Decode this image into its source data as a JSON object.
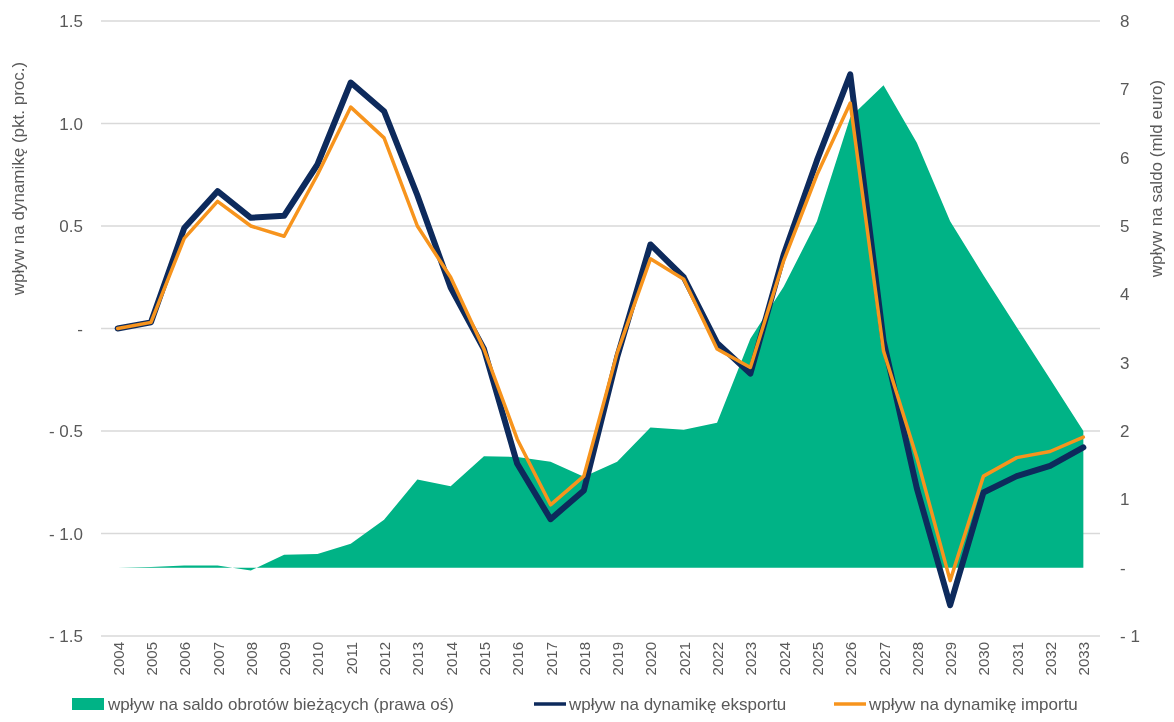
{
  "chart_data": {
    "type": "line",
    "ylabel": "wpływ  na dynamikę (pkt. proc.)",
    "y2label": "wpływ na saldo (mld euro)",
    "categories": [
      "2004",
      "2005",
      "2006",
      "2007",
      "2008",
      "2009",
      "2010",
      "2011",
      "2012",
      "2013",
      "2014",
      "2015",
      "2016",
      "2017",
      "2018",
      "2019",
      "2020",
      "2021",
      "2022",
      "2023",
      "2024",
      "2025",
      "2026",
      "2027",
      "2028",
      "2029",
      "2030",
      "2031",
      "2032",
      "2033"
    ],
    "series": [
      {
        "name": "wpływ na saldo obrotów bieżących (prawa oś)",
        "type": "area",
        "axis": "y2",
        "color": "#00b386",
        "values": [
          0,
          0.01,
          0.03,
          0.03,
          -0.04,
          0.19,
          0.2,
          0.35,
          0.7,
          1.29,
          1.19,
          1.63,
          1.62,
          1.55,
          1.33,
          1.55,
          2.05,
          2.02,
          2.12,
          3.35,
          4.11,
          5.07,
          6.59,
          7.06,
          6.22,
          5.07,
          4.28,
          3.52,
          2.76,
          2.0
        ]
      },
      {
        "name": "wpływ na dynamikę eksportu",
        "color": "#0d2a5c",
        "values": [
          0,
          0.03,
          0.49,
          0.67,
          0.54,
          0.55,
          0.8,
          1.2,
          1.06,
          0.65,
          0.2,
          -0.1,
          -0.66,
          -0.93,
          -0.79,
          -0.14,
          0.41,
          0.25,
          -0.07,
          -0.22,
          0.36,
          0.82,
          1.24,
          -0.06,
          -0.78,
          -1.35,
          -0.8,
          -0.72,
          -0.67,
          -0.58
        ]
      },
      {
        "name": "wpływ na dynamikę importu",
        "color": "#f7941d",
        "values": [
          0,
          0.03,
          0.44,
          0.62,
          0.5,
          0.45,
          0.75,
          1.08,
          0.93,
          0.5,
          0.25,
          -0.1,
          -0.54,
          -0.86,
          -0.72,
          -0.12,
          0.34,
          0.24,
          -0.1,
          -0.19,
          0.33,
          0.75,
          1.1,
          -0.11,
          -0.63,
          -1.23,
          -0.72,
          -0.63,
          -0.6,
          -0.53
        ]
      }
    ],
    "ylim": [
      -1.5,
      1.5
    ],
    "yticks": [
      {
        "value": -1.5,
        "label": "- 1.5"
      },
      {
        "value": -1,
        "label": "- 1.0"
      },
      {
        "value": -0.5,
        "label": "- 0.5"
      },
      {
        "value": 0,
        "label": "-"
      },
      {
        "value": 0.5,
        "label": "0.5"
      },
      {
        "value": 1,
        "label": "1.0"
      },
      {
        "value": 1.5,
        "label": "1.5"
      }
    ],
    "y2lim": [
      -1,
      8
    ],
    "y2ticks": [
      {
        "value": -1,
        "label": "- 1"
      },
      {
        "value": 0,
        "label": "-"
      },
      1,
      2,
      3,
      4,
      5,
      6,
      7,
      8
    ],
    "grid": "y",
    "legend": "bottom"
  }
}
